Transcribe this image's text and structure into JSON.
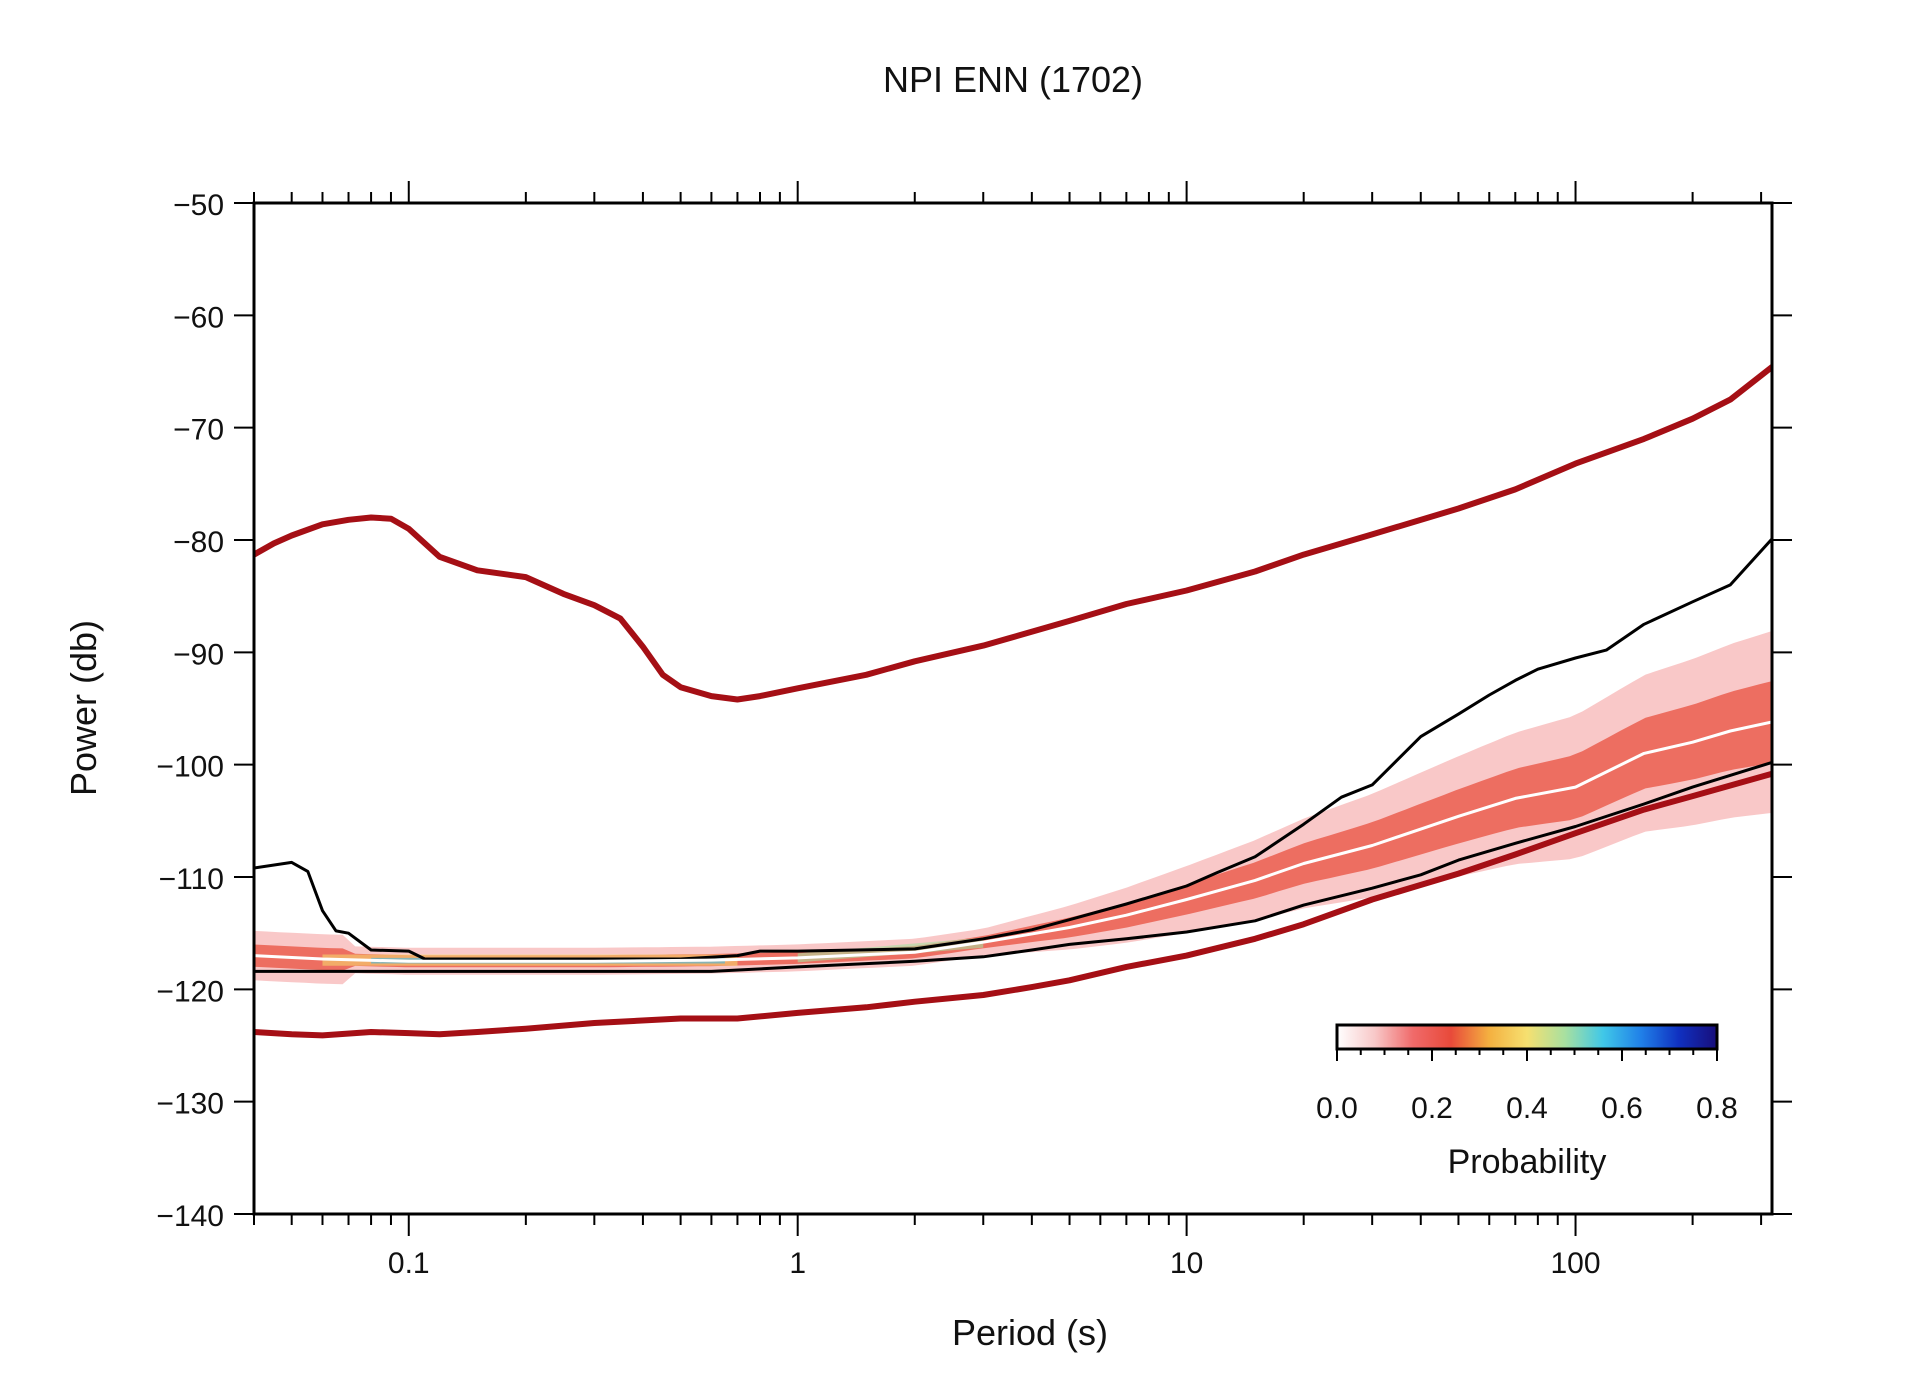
{
  "chart_data": {
    "type": "line",
    "title": "NPI ENN (1702)",
    "xlabel": "Period (s)",
    "ylabel": "Power (db)",
    "x_scale": "log",
    "xlim": [
      0.04,
      320
    ],
    "ylim": [
      -140,
      -50
    ],
    "xticks": [
      {
        "v": 0.1,
        "label": "0.1"
      },
      {
        "v": 1,
        "label": "1"
      },
      {
        "v": 10,
        "label": "10"
      },
      {
        "v": 100,
        "label": "100"
      }
    ],
    "yticks": [
      {
        "v": -50,
        "label": "−50"
      },
      {
        "v": -60,
        "label": "−60"
      },
      {
        "v": -70,
        "label": "−70"
      },
      {
        "v": -80,
        "label": "−80"
      },
      {
        "v": -90,
        "label": "−90"
      },
      {
        "v": -100,
        "label": "−100"
      },
      {
        "v": -110,
        "label": "−110"
      },
      {
        "v": -120,
        "label": "−120"
      },
      {
        "v": -130,
        "label": "−130"
      },
      {
        "v": -140,
        "label": "−140"
      }
    ],
    "grid": false,
    "colors": {
      "noise_model": "#a50f15",
      "percentile": "#000000",
      "mode": "#ffffff"
    },
    "series": [
      {
        "role": "noise_model_high",
        "x": [
          0.04,
          0.045,
          0.05,
          0.06,
          0.07,
          0.08,
          0.09,
          0.1,
          0.12,
          0.15,
          0.2,
          0.25,
          0.3,
          0.35,
          0.4,
          0.45,
          0.5,
          0.6,
          0.7,
          0.8,
          1,
          1.5,
          2,
          3,
          5,
          7,
          10,
          15,
          20,
          30,
          50,
          70,
          100,
          150,
          200,
          250,
          320
        ],
        "y": [
          -81.3,
          -80.3,
          -79.6,
          -78.6,
          -78.2,
          -78,
          -78.1,
          -79,
          -81.5,
          -82.7,
          -83.3,
          -84.8,
          -85.8,
          -87,
          -89.5,
          -92,
          -93.1,
          -93.9,
          -94.2,
          -93.9,
          -93.2,
          -92,
          -90.8,
          -89.4,
          -87.2,
          -85.7,
          -84.5,
          -82.8,
          -81.3,
          -79.5,
          -77.2,
          -75.5,
          -73.2,
          -71,
          -69.2,
          -67.5,
          -64.6
        ]
      },
      {
        "role": "noise_model_low",
        "x": [
          0.04,
          0.05,
          0.06,
          0.08,
          0.1,
          0.12,
          0.15,
          0.2,
          0.3,
          0.5,
          0.7,
          1,
          1.5,
          2,
          3,
          4,
          5,
          7,
          10,
          15,
          20,
          30,
          50,
          70,
          100,
          150,
          200,
          320
        ],
        "y": [
          -123.8,
          -124,
          -124.1,
          -123.8,
          -123.9,
          -124,
          -123.8,
          -123.5,
          -123,
          -122.6,
          -122.6,
          -122.1,
          -121.6,
          -121.1,
          -120.5,
          -119.8,
          -119.2,
          -118,
          -117,
          -115.5,
          -114.2,
          -112,
          -109.7,
          -108,
          -106.1,
          -104,
          -102.8,
          -100.8
        ]
      },
      {
        "role": "percentile_high",
        "x": [
          0.04,
          0.05,
          0.055,
          0.06,
          0.065,
          0.07,
          0.08,
          0.1,
          0.11,
          0.2,
          0.5,
          0.7,
          0.8,
          1,
          2,
          3,
          4,
          5,
          7,
          10,
          12,
          15,
          20,
          25,
          30,
          35,
          40,
          50,
          60,
          70,
          80,
          100,
          120,
          150,
          200,
          250,
          320
        ],
        "y": [
          -109.2,
          -108.7,
          -109.5,
          -113,
          -114.8,
          -115,
          -116.5,
          -116.6,
          -117.3,
          -117.3,
          -117.3,
          -117,
          -116.6,
          -116.6,
          -116.4,
          -115.5,
          -114.7,
          -113.8,
          -112.4,
          -110.8,
          -109.6,
          -108.2,
          -105.3,
          -102.9,
          -101.8,
          -99.5,
          -97.5,
          -95.5,
          -93.8,
          -92.5,
          -91.5,
          -90.5,
          -89.8,
          -87.5,
          -85.5,
          -84,
          -79.9
        ]
      },
      {
        "role": "percentile_low",
        "x": [
          0.04,
          0.1,
          0.3,
          0.6,
          1,
          2,
          3,
          4,
          5,
          7,
          10,
          15,
          20,
          30,
          40,
          50,
          70,
          100,
          150,
          200,
          320
        ],
        "y": [
          -118.4,
          -118.4,
          -118.4,
          -118.4,
          -118,
          -117.5,
          -117.1,
          -116.5,
          -116,
          -115.5,
          -114.9,
          -113.9,
          -112.5,
          -111,
          -109.8,
          -108.5,
          -107,
          -105.5,
          -103.5,
          -102,
          -99.8
        ]
      },
      {
        "role": "mode",
        "x": [
          0.04,
          0.06,
          0.1,
          0.3,
          0.6,
          1,
          2,
          3,
          5,
          7,
          10,
          15,
          20,
          30,
          50,
          70,
          100,
          150,
          200,
          250,
          320
        ],
        "y": [
          -117,
          -117.3,
          -117.5,
          -117.5,
          -117.4,
          -117.2,
          -116.7,
          -115.8,
          -114.5,
          -113.4,
          -112,
          -110.3,
          -108.8,
          -107.2,
          -104.6,
          -103,
          -102,
          -99,
          -98,
          -97,
          -96.2
        ]
      }
    ],
    "colorbar": {
      "label": "Probability",
      "ticks": [
        "0.0",
        "0.2",
        "0.4",
        "0.6",
        "0.8"
      ],
      "range": [
        0,
        0.8
      ],
      "stops": [
        "#ffffff",
        "#f8c8c8",
        "#f06a6a",
        "#e84a3a",
        "#f4b040",
        "#f6e070",
        "#a8e0a0",
        "#40c8e8",
        "#2080e8",
        "#1030c0",
        "#180e7a"
      ]
    }
  }
}
